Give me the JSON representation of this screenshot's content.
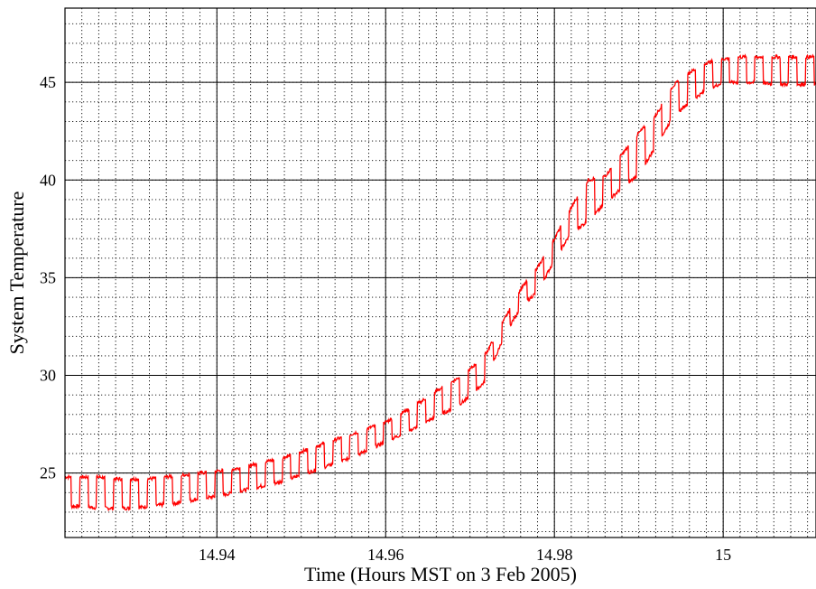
{
  "chart_data": {
    "type": "line",
    "title": "",
    "xlabel": "Time (Hours MST on 3 Feb 2005)",
    "ylabel": "System Temperature",
    "xlim": [
      14.922,
      15.011
    ],
    "ylim": [
      21.7,
      48.8
    ],
    "x_ticks": [
      14.94,
      14.96,
      14.98,
      15.0
    ],
    "x_tick_labels": [
      "14.94",
      "14.96",
      "14.98",
      "15"
    ],
    "y_ticks": [
      25,
      30,
      35,
      40,
      45
    ],
    "y_tick_labels": [
      "25",
      "30",
      "35",
      "40",
      "45"
    ],
    "x_minor_step": 0.002,
    "y_minor_step": 1,
    "grid": true,
    "legend": "none",
    "series": [
      {
        "color": "#ff0000",
        "description": "Square-wave temperature oscillation (period about 0.002 h) between a high and a low level",
        "x": [
          14.922,
          14.924,
          14.926,
          14.928,
          14.93,
          14.932,
          14.934,
          14.936,
          14.938,
          14.94,
          14.942,
          14.944,
          14.946,
          14.948,
          14.95,
          14.952,
          14.954,
          14.956,
          14.958,
          14.96,
          14.962,
          14.964,
          14.966,
          14.968,
          14.97,
          14.972,
          14.974,
          14.976,
          14.978,
          14.98,
          14.982,
          14.984,
          14.986,
          14.988,
          14.99,
          14.992,
          14.994,
          14.996,
          14.998,
          15.0,
          15.002,
          15.004,
          15.006,
          15.008,
          15.01
        ],
        "high": [
          24.8,
          24.8,
          24.8,
          24.7,
          24.7,
          24.7,
          24.8,
          24.9,
          25.0,
          25.1,
          25.2,
          25.4,
          25.6,
          25.8,
          26.1,
          26.4,
          26.7,
          27.0,
          27.3,
          27.6,
          28.1,
          28.6,
          29.2,
          29.7,
          30.3,
          31.2,
          32.8,
          34.4,
          35.5,
          37.0,
          38.6,
          40.0,
          40.2,
          41.3,
          42.4,
          43.3,
          44.8,
          45.5,
          46.0,
          46.2,
          46.3,
          46.3,
          46.3,
          46.3,
          46.3
        ],
        "low": [
          23.3,
          23.3,
          23.2,
          23.2,
          23.2,
          23.3,
          23.4,
          23.5,
          23.7,
          23.8,
          24.0,
          24.2,
          24.4,
          24.6,
          24.9,
          25.2,
          25.5,
          25.8,
          26.2,
          26.6,
          27.0,
          27.4,
          27.9,
          28.3,
          28.9,
          29.8,
          32.0,
          33.5,
          34.3,
          35.9,
          37.3,
          37.9,
          38.8,
          39.6,
          40.3,
          41.7,
          43.2,
          44.0,
          44.6,
          45.0,
          45.0,
          45.0,
          44.9,
          44.9,
          44.9
        ]
      }
    ]
  }
}
